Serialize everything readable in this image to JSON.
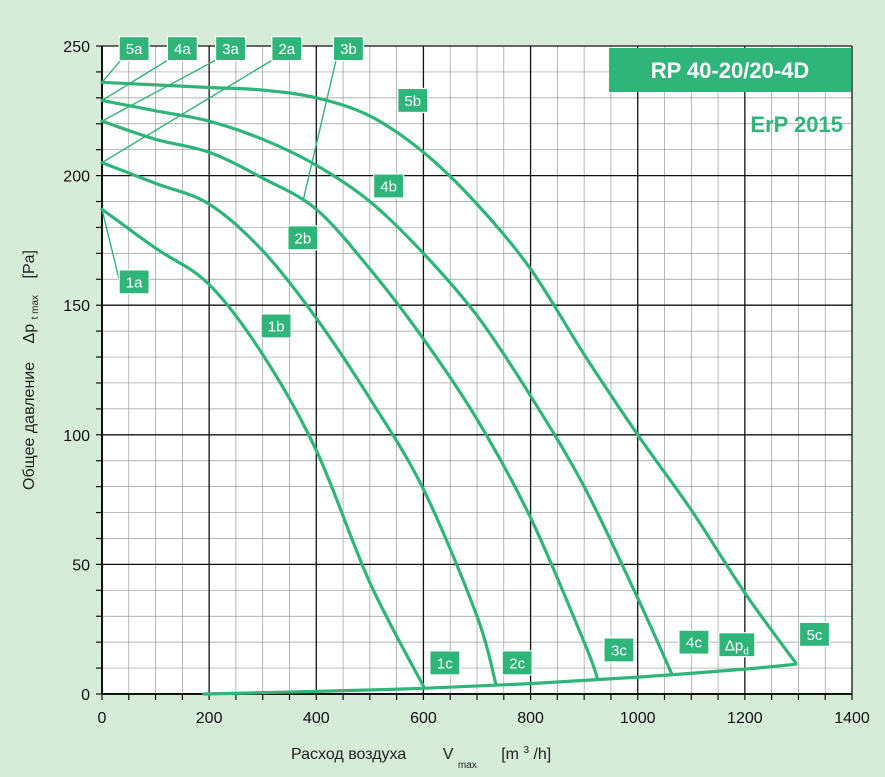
{
  "colors": {
    "accent": "#2fb47a",
    "background": "#d6ecd8",
    "plot_bg": "#ffffff",
    "grid_major": "#111111",
    "grid_minor": "#9a9a9a"
  },
  "chart_data": {
    "type": "line",
    "title": "RP 40-20/20-4D",
    "subtitle": "ErP 2015",
    "ylabel_main": "Общее давление",
    "ylabel_symbol": "Δp",
    "ylabel_sub": "t max",
    "ylabel_unit": "[Pa]",
    "xlabel_main": "Расход воздуха",
    "xlabel_symbol": "V",
    "xlabel_sub": "max",
    "xlabel_unit_pre": "[m",
    "xlabel_unit_sup": "3",
    "xlabel_unit_post": "/h]",
    "xlim": [
      0,
      1400
    ],
    "ylim": [
      0,
      250
    ],
    "grid": true,
    "x_ticks": [
      "0",
      "200",
      "400",
      "600",
      "800",
      "1000",
      "1200",
      "1400"
    ],
    "y_ticks": [
      "0",
      "50",
      "100",
      "150",
      "200",
      "250"
    ],
    "series": [
      {
        "name": "1",
        "points": [
          [
            0,
            187
          ],
          [
            100,
            172
          ],
          [
            200,
            158
          ],
          [
            300,
            131
          ],
          [
            400,
            94
          ],
          [
            500,
            43
          ],
          [
            600,
            3
          ]
        ]
      },
      {
        "name": "2",
        "points": [
          [
            0,
            205
          ],
          [
            100,
            197
          ],
          [
            200,
            189
          ],
          [
            300,
            171
          ],
          [
            400,
            145
          ],
          [
            500,
            114
          ],
          [
            600,
            79
          ],
          [
            700,
            30
          ],
          [
            735,
            4
          ]
        ]
      },
      {
        "name": "3",
        "points": [
          [
            0,
            221
          ],
          [
            100,
            214
          ],
          [
            200,
            209
          ],
          [
            300,
            199
          ],
          [
            400,
            187
          ],
          [
            500,
            164
          ],
          [
            600,
            137
          ],
          [
            700,
            106
          ],
          [
            800,
            68
          ],
          [
            900,
            20
          ],
          [
            925,
            6
          ]
        ]
      },
      {
        "name": "4",
        "points": [
          [
            0,
            229
          ],
          [
            100,
            225
          ],
          [
            200,
            221
          ],
          [
            300,
            214
          ],
          [
            400,
            204
          ],
          [
            500,
            190
          ],
          [
            600,
            170
          ],
          [
            700,
            146
          ],
          [
            800,
            115
          ],
          [
            900,
            80
          ],
          [
            1000,
            37
          ],
          [
            1063,
            8
          ]
        ]
      },
      {
        "name": "5",
        "points": [
          [
            0,
            236
          ],
          [
            100,
            235
          ],
          [
            200,
            234
          ],
          [
            300,
            233
          ],
          [
            400,
            230
          ],
          [
            500,
            223
          ],
          [
            600,
            209
          ],
          [
            700,
            189
          ],
          [
            800,
            164
          ],
          [
            900,
            131
          ],
          [
            1000,
            100
          ],
          [
            1100,
            71
          ],
          [
            1200,
            39
          ],
          [
            1295,
            12
          ]
        ]
      }
    ],
    "dp_d_curve": {
      "name": "Δp",
      "name_sub": "d",
      "points": [
        [
          190,
          0
        ],
        [
          400,
          1
        ],
        [
          600,
          2.2
        ],
        [
          800,
          4
        ],
        [
          1000,
          6.5
        ],
        [
          1200,
          9.6
        ],
        [
          1295,
          11.5
        ]
      ]
    },
    "labels": [
      {
        "text": "5a",
        "pos": [
          60,
          249
        ],
        "target": [
          0,
          236
        ]
      },
      {
        "text": "4a",
        "pos": [
          150,
          249
        ],
        "target": [
          0,
          229
        ]
      },
      {
        "text": "3a",
        "pos": [
          240,
          249
        ],
        "target": [
          0,
          221
        ]
      },
      {
        "text": "2a",
        "pos": [
          345,
          249
        ],
        "target": [
          0,
          205
        ]
      },
      {
        "text": "3b",
        "pos": [
          460,
          249
        ],
        "target": [
          375,
          190
        ]
      },
      {
        "text": "5b",
        "pos": [
          580,
          229
        ],
        "target": null
      },
      {
        "text": "4b",
        "pos": [
          535,
          196
        ],
        "target": null
      },
      {
        "text": "2b",
        "pos": [
          375,
          176
        ],
        "target": null
      },
      {
        "text": "1a",
        "pos": [
          60,
          159
        ],
        "target": [
          0,
          187
        ]
      },
      {
        "text": "1b",
        "pos": [
          325,
          142
        ],
        "target": null
      },
      {
        "text": "1c",
        "pos": [
          640,
          12
        ],
        "target": null
      },
      {
        "text": "2c",
        "pos": [
          775,
          12
        ],
        "target": null
      },
      {
        "text": "3c",
        "pos": [
          965,
          17
        ],
        "target": null
      },
      {
        "text": "4c",
        "pos": [
          1105,
          20
        ],
        "target": null
      },
      {
        "text": "5c",
        "pos": [
          1330,
          23
        ],
        "target": null
      }
    ]
  }
}
